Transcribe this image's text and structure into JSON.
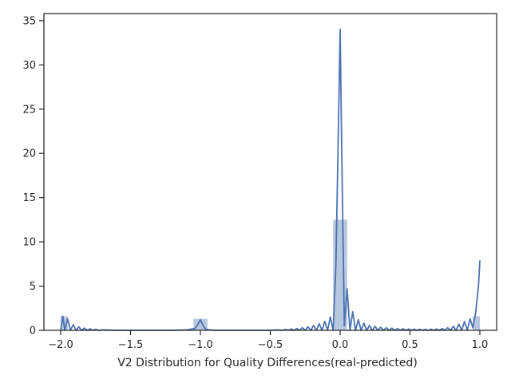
{
  "chart_data": {
    "type": "area",
    "title": "",
    "xlabel": "V2 Distribution for Quality Differences(real-predicted)",
    "ylabel": "",
    "xlim": [
      -2.12,
      1.12
    ],
    "ylim": [
      0,
      35.8
    ],
    "xticks": [
      -2.0,
      -1.5,
      -1.0,
      -0.5,
      0.0,
      0.5,
      1.0
    ],
    "xtick_labels": [
      "−2.0",
      "−1.5",
      "−1.0",
      "−0.5",
      "0.0",
      "0.5",
      "1.0"
    ],
    "yticks": [
      0,
      5,
      10,
      15,
      20,
      25,
      30,
      35
    ],
    "ytick_labels": [
      "0",
      "5",
      "10",
      "15",
      "20",
      "25",
      "30",
      "35"
    ],
    "grid": false,
    "line_color": "#4c72b0",
    "hist_color": "#4c72b0",
    "histogram": {
      "bin_edges": [
        -2.0,
        -1.95,
        -1.05,
        -0.95,
        -0.05,
        0.05,
        0.95,
        1.0
      ],
      "values": [
        1.6,
        0,
        1.3,
        0,
        12.5,
        0,
        1.6
      ]
    },
    "kde": {
      "x": [
        -2.0,
        -1.985,
        -1.97,
        -1.95,
        -1.93,
        -1.91,
        -1.89,
        -1.87,
        -1.85,
        -1.83,
        -1.81,
        -1.79,
        -1.77,
        -1.75,
        -1.73,
        -1.7,
        -1.6,
        -1.5,
        -1.4,
        -1.3,
        -1.2,
        -1.1,
        -1.04,
        -1.02,
        -1.0,
        -0.98,
        -0.96,
        -0.9,
        -0.8,
        -0.7,
        -0.6,
        -0.5,
        -0.45,
        -0.41,
        -0.39,
        -0.37,
        -0.35,
        -0.33,
        -0.31,
        -0.29,
        -0.27,
        -0.25,
        -0.23,
        -0.21,
        -0.19,
        -0.17,
        -0.15,
        -0.13,
        -0.11,
        -0.09,
        -0.07,
        -0.05,
        -0.03,
        -0.01,
        0.0,
        0.01,
        0.03,
        0.05,
        0.07,
        0.09,
        0.11,
        0.13,
        0.15,
        0.17,
        0.19,
        0.21,
        0.23,
        0.25,
        0.27,
        0.29,
        0.31,
        0.33,
        0.35,
        0.37,
        0.39,
        0.41,
        0.43,
        0.45,
        0.47,
        0.49,
        0.51,
        0.53,
        0.55,
        0.57,
        0.59,
        0.61,
        0.63,
        0.65,
        0.67,
        0.69,
        0.71,
        0.73,
        0.75,
        0.77,
        0.79,
        0.81,
        0.83,
        0.85,
        0.87,
        0.89,
        0.91,
        0.93,
        0.95,
        0.97,
        0.99,
        1.0
      ],
      "y": [
        0.0,
        1.6,
        0.0,
        1.3,
        0.0,
        0.65,
        0.0,
        0.4,
        0.0,
        0.25,
        0.0,
        0.18,
        0.0,
        0.12,
        0.0,
        0.05,
        0.0,
        0.0,
        0.0,
        0.0,
        0.0,
        0.05,
        0.2,
        0.6,
        1.2,
        0.5,
        0.1,
        0.0,
        0.0,
        0.0,
        0.0,
        0.0,
        0.05,
        0.0,
        0.1,
        0.0,
        0.15,
        0.0,
        0.2,
        0.0,
        0.3,
        0.0,
        0.4,
        0.0,
        0.55,
        0.0,
        0.75,
        0.0,
        1.0,
        0.0,
        1.5,
        0.0,
        7.5,
        25.0,
        34.0,
        22.0,
        0.5,
        4.7,
        0.0,
        2.1,
        0.0,
        1.2,
        0.0,
        0.8,
        0.0,
        0.55,
        0.0,
        0.45,
        0.0,
        0.35,
        0.0,
        0.3,
        0.0,
        0.25,
        0.0,
        0.2,
        0.0,
        0.18,
        0.0,
        0.15,
        0.0,
        0.13,
        0.0,
        0.12,
        0.0,
        0.12,
        0.0,
        0.13,
        0.0,
        0.15,
        0.0,
        0.2,
        0.0,
        0.3,
        0.0,
        0.45,
        0.0,
        0.7,
        0.0,
        1.0,
        0.0,
        1.3,
        0.3,
        2.0,
        5.0,
        7.9
      ]
    }
  }
}
